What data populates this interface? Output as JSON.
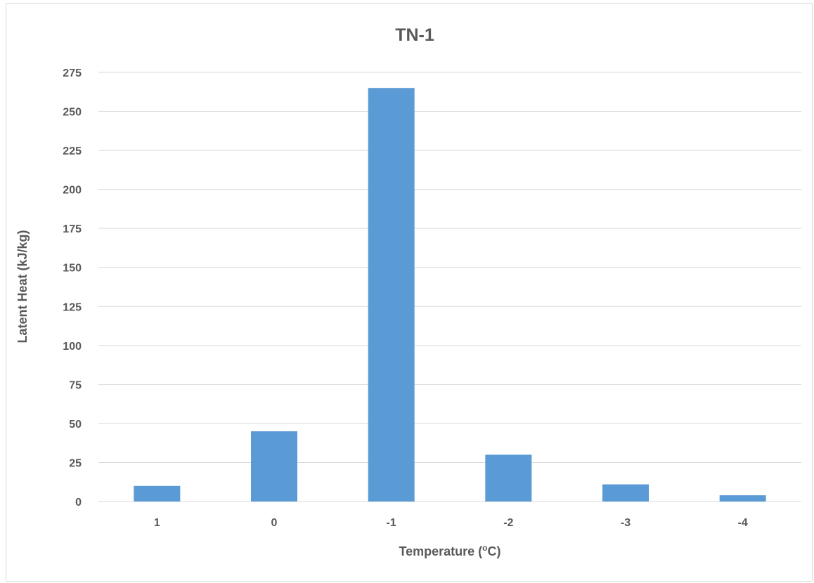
{
  "chart_data": {
    "type": "bar",
    "title": "TN-1",
    "xlabel": "Temperature (",
    "xlabel_sup": "o",
    "xlabel_suffix": "C)",
    "ylabel": "Latent Heat (kJ/kg)",
    "categories": [
      "1",
      "0",
      "-1",
      "-2",
      "-3",
      "-4"
    ],
    "series": [
      {
        "values": [
          10,
          45,
          265,
          30,
          11,
          4
        ]
      }
    ],
    "ylim": [
      0,
      275
    ],
    "yticks": [
      0,
      25,
      50,
      75,
      100,
      125,
      150,
      175,
      200,
      225,
      250,
      275
    ],
    "grid": true,
    "legend": "none",
    "colors": {
      "bar": "#5b9bd5",
      "grid": "#d9d9d9",
      "text": "#595959"
    }
  }
}
